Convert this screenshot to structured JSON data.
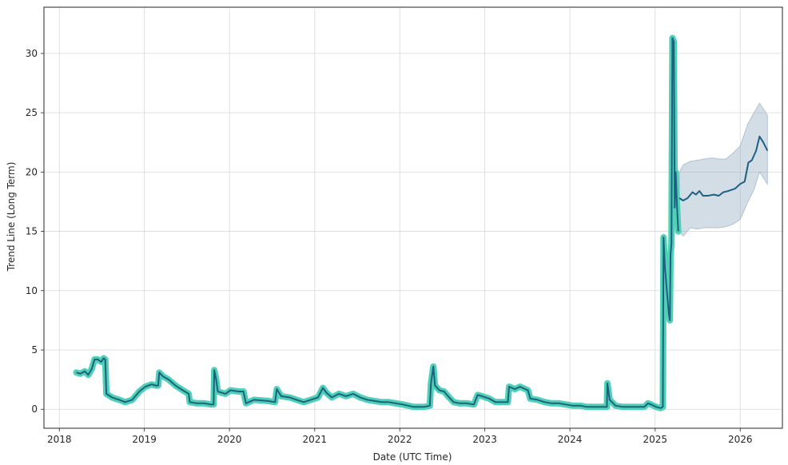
{
  "chart_data": {
    "type": "line",
    "title": "",
    "xlabel": "Date (UTC Time)",
    "ylabel": "Trend Line (Long Term)",
    "x_ticks": [
      "2018",
      "2019",
      "2020",
      "2021",
      "2022",
      "2023",
      "2024",
      "2025",
      "2026"
    ],
    "y_ticks": [
      0,
      5,
      10,
      15,
      20,
      25,
      30
    ],
    "xlim": [
      "2017-10-27",
      "2026-07-01"
    ],
    "ylim": [
      -1.6,
      33.9
    ],
    "grid": true,
    "colors": {
      "history_highlight": "#4fd1b5",
      "line": "#1f5f82",
      "band": "#8fa9bf",
      "grid": "#d9d9d9",
      "axis": "#262626"
    },
    "history": [
      [
        "2018-03-15",
        3.1
      ],
      [
        "2018-04-01",
        3.0
      ],
      [
        "2018-04-20",
        3.2
      ],
      [
        "2018-05-05",
        2.9
      ],
      [
        "2018-05-20",
        3.4
      ],
      [
        "2018-06-01",
        4.2
      ],
      [
        "2018-06-15",
        4.2
      ],
      [
        "2018-06-30",
        4.0
      ],
      [
        "2018-07-10",
        4.3
      ],
      [
        "2018-07-17",
        4.2
      ],
      [
        "2018-07-22",
        1.3
      ],
      [
        "2018-08-15",
        1.0
      ],
      [
        "2018-09-15",
        0.8
      ],
      [
        "2018-10-10",
        0.6
      ],
      [
        "2018-11-10",
        0.8
      ],
      [
        "2018-12-10",
        1.5
      ],
      [
        "2019-01-05",
        1.9
      ],
      [
        "2019-02-01",
        2.1
      ],
      [
        "2019-02-20",
        2.0
      ],
      [
        "2019-03-01",
        2.0
      ],
      [
        "2019-03-06",
        3.1
      ],
      [
        "2019-03-20",
        2.8
      ],
      [
        "2019-04-15",
        2.5
      ],
      [
        "2019-05-15",
        2.0
      ],
      [
        "2019-06-15",
        1.6
      ],
      [
        "2019-07-10",
        1.3
      ],
      [
        "2019-07-15",
        0.6
      ],
      [
        "2019-08-15",
        0.5
      ],
      [
        "2019-09-15",
        0.5
      ],
      [
        "2019-10-15",
        0.4
      ],
      [
        "2019-10-25",
        0.4
      ],
      [
        "2019-10-28",
        3.3
      ],
      [
        "2019-11-05",
        2.5
      ],
      [
        "2019-11-12",
        1.5
      ],
      [
        "2019-12-15",
        1.3
      ],
      [
        "2020-01-05",
        1.6
      ],
      [
        "2020-02-10",
        1.5
      ],
      [
        "2020-03-01",
        1.5
      ],
      [
        "2020-03-12",
        0.5
      ],
      [
        "2020-04-15",
        0.8
      ],
      [
        "2020-06-15",
        0.7
      ],
      [
        "2020-07-15",
        0.6
      ],
      [
        "2020-07-22",
        1.7
      ],
      [
        "2020-08-10",
        1.1
      ],
      [
        "2020-09-15",
        1.0
      ],
      [
        "2020-10-15",
        0.8
      ],
      [
        "2020-11-15",
        0.6
      ],
      [
        "2020-12-15",
        0.8
      ],
      [
        "2021-01-15",
        1.0
      ],
      [
        "2021-02-05",
        1.8
      ],
      [
        "2021-02-20",
        1.4
      ],
      [
        "2021-03-15",
        1.0
      ],
      [
        "2021-04-15",
        1.3
      ],
      [
        "2021-05-15",
        1.1
      ],
      [
        "2021-06-15",
        1.3
      ],
      [
        "2021-07-15",
        1.0
      ],
      [
        "2021-08-15",
        0.8
      ],
      [
        "2021-09-15",
        0.7
      ],
      [
        "2021-10-15",
        0.6
      ],
      [
        "2021-11-15",
        0.6
      ],
      [
        "2021-12-15",
        0.5
      ],
      [
        "2022-01-15",
        0.4
      ],
      [
        "2022-03-01",
        0.2
      ],
      [
        "2022-04-15",
        0.2
      ],
      [
        "2022-05-10",
        0.3
      ],
      [
        "2022-05-15",
        2.2
      ],
      [
        "2022-05-25",
        3.6
      ],
      [
        "2022-06-01",
        2.0
      ],
      [
        "2022-06-20",
        1.6
      ],
      [
        "2022-07-10",
        1.5
      ],
      [
        "2022-08-01",
        1.0
      ],
      [
        "2022-08-20",
        0.6
      ],
      [
        "2022-09-15",
        0.5
      ],
      [
        "2022-10-15",
        0.5
      ],
      [
        "2022-11-15",
        0.4
      ],
      [
        "2022-12-01",
        1.2
      ],
      [
        "2022-12-20",
        1.1
      ],
      [
        "2023-01-20",
        0.9
      ],
      [
        "2023-02-15",
        0.6
      ],
      [
        "2023-03-20",
        0.6
      ],
      [
        "2023-04-10",
        0.6
      ],
      [
        "2023-04-15",
        1.9
      ],
      [
        "2023-05-10",
        1.7
      ],
      [
        "2023-06-01",
        1.9
      ],
      [
        "2023-07-05",
        1.6
      ],
      [
        "2023-07-15",
        0.9
      ],
      [
        "2023-08-15",
        0.8
      ],
      [
        "2023-09-15",
        0.6
      ],
      [
        "2023-10-15",
        0.5
      ],
      [
        "2023-11-15",
        0.5
      ],
      [
        "2023-12-15",
        0.4
      ],
      [
        "2024-01-15",
        0.3
      ],
      [
        "2024-02-15",
        0.3
      ],
      [
        "2024-03-15",
        0.2
      ],
      [
        "2024-04-15",
        0.2
      ],
      [
        "2024-05-15",
        0.2
      ],
      [
        "2024-06-08",
        0.2
      ],
      [
        "2024-06-10",
        2.2
      ],
      [
        "2024-06-20",
        0.8
      ],
      [
        "2024-07-15",
        0.3
      ],
      [
        "2024-08-15",
        0.2
      ],
      [
        "2024-09-15",
        0.2
      ],
      [
        "2024-10-15",
        0.2
      ],
      [
        "2024-11-15",
        0.2
      ],
      [
        "2024-12-01",
        0.5
      ],
      [
        "2024-12-15",
        0.4
      ],
      [
        "2025-01-05",
        0.2
      ],
      [
        "2025-01-25",
        0.1
      ],
      [
        "2025-02-03",
        0.2
      ],
      [
        "2025-02-06",
        14.5
      ],
      [
        "2025-02-12",
        12.0
      ],
      [
        "2025-02-20",
        10.0
      ],
      [
        "2025-03-01",
        8.0
      ],
      [
        "2025-03-05",
        7.5
      ],
      [
        "2025-03-08",
        13.0
      ],
      [
        "2025-03-12",
        14.0
      ],
      [
        "2025-03-16",
        31.3
      ],
      [
        "2025-03-22",
        31.0
      ],
      [
        "2025-03-26",
        17.0
      ],
      [
        "2025-03-30",
        20.0
      ],
      [
        "2025-04-05",
        17.0
      ],
      [
        "2025-04-10",
        15.0
      ]
    ],
    "forecast": [
      [
        "2025-04-15",
        17.8
      ],
      [
        "2025-05-01",
        17.6
      ],
      [
        "2025-05-20",
        17.8
      ],
      [
        "2025-06-10",
        18.3
      ],
      [
        "2025-06-25",
        18.1
      ],
      [
        "2025-07-10",
        18.4
      ],
      [
        "2025-07-25",
        18.0
      ],
      [
        "2025-08-15",
        18.0
      ],
      [
        "2025-09-10",
        18.1
      ],
      [
        "2025-10-01",
        18.0
      ],
      [
        "2025-10-20",
        18.3
      ],
      [
        "2025-11-10",
        18.4
      ],
      [
        "2025-12-10",
        18.6
      ],
      [
        "2026-01-01",
        19.0
      ],
      [
        "2026-01-20",
        19.2
      ],
      [
        "2026-02-05",
        20.8
      ],
      [
        "2026-02-20",
        21.0
      ],
      [
        "2026-03-10",
        21.8
      ],
      [
        "2026-03-25",
        23.0
      ],
      [
        "2026-04-10",
        22.5
      ],
      [
        "2026-04-28",
        21.8
      ]
    ],
    "forecast_band": [
      [
        "2025-04-15",
        15.0,
        20.0
      ],
      [
        "2025-05-01",
        14.6,
        20.6
      ],
      [
        "2025-06-01",
        15.3,
        20.9
      ],
      [
        "2025-07-01",
        15.2,
        21.0
      ],
      [
        "2025-08-01",
        15.3,
        21.1
      ],
      [
        "2025-09-01",
        15.3,
        21.2
      ],
      [
        "2025-10-01",
        15.3,
        21.1
      ],
      [
        "2025-11-01",
        15.4,
        21.1
      ],
      [
        "2025-12-01",
        15.6,
        21.6
      ],
      [
        "2026-01-01",
        16.0,
        22.2
      ],
      [
        "2026-02-01",
        17.4,
        24.0
      ],
      [
        "2026-03-01",
        18.5,
        25.0
      ],
      [
        "2026-03-25",
        20.0,
        25.8
      ],
      [
        "2026-04-28",
        19.0,
        24.8
      ]
    ]
  }
}
